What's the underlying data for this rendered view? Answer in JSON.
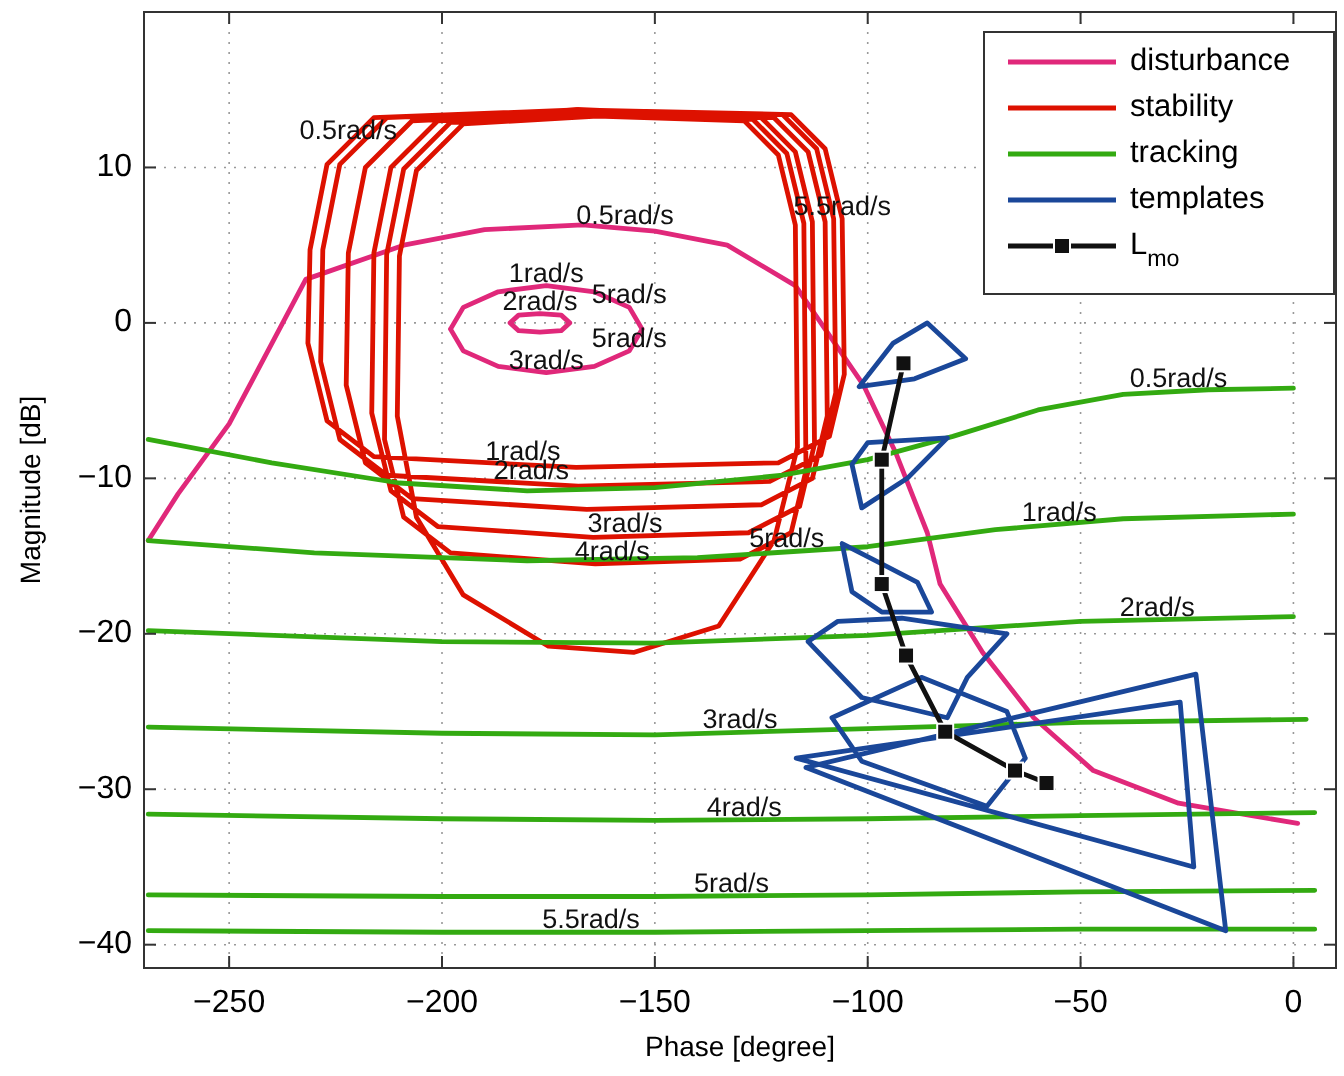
{
  "chart_data": {
    "type": "line",
    "xlabel": "Phase [degree]",
    "ylabel": "Magnitude [dB]",
    "xlim": [
      -270,
      10
    ],
    "ylim": [
      -41.5,
      20
    ],
    "xticks": [
      -250,
      -200,
      -150,
      -100,
      -50,
      0
    ],
    "yticks": [
      -40,
      -30,
      -20,
      -10,
      0,
      10
    ],
    "grid": true,
    "legend": "top right",
    "series": [
      {
        "name": "disturbance",
        "color": "#e0287a",
        "x": [
          -269,
          -262,
          -250,
          -232,
          -209,
          -190,
          -167,
          -150,
          -133,
          -117,
          -101,
          -93.5,
          -86,
          -83,
          -73,
          -61,
          -47,
          -27,
          1,
          null,
          -198,
          -195,
          -186.8,
          -175.5,
          -164.2,
          -156,
          -153,
          null,
          -198,
          -195,
          -186.8,
          -175.5,
          -164.2,
          -156,
          -153,
          null,
          -184,
          -182,
          -177,
          -172,
          -170,
          null,
          -184,
          -182,
          -177,
          -172,
          -170
        ],
        "values": [
          -14,
          -11,
          -6.5,
          2.8,
          5,
          6,
          6.3,
          5.9,
          5,
          2.4,
          -4,
          -8.3,
          -13.5,
          -16.8,
          -21.2,
          -25.4,
          -28.8,
          -30.9,
          -32.2,
          null,
          -0.4,
          1,
          2,
          2.4,
          2,
          1,
          -0.4,
          null,
          -0.4,
          -1.8,
          -2.8,
          -3.2,
          -2.8,
          -1.8,
          -0.4,
          null,
          0,
          0.5,
          0.6,
          0.5,
          0,
          null,
          0,
          -0.5,
          -0.6,
          -0.5,
          0
        ]
      },
      {
        "name": "stability",
        "color": "#dd1100",
        "x": [
          -231.5,
          -231,
          -227,
          -216,
          -168.5,
          -118,
          -110,
          -106,
          -105.5,
          null,
          -231.5,
          -227,
          -216,
          -168.5,
          -121,
          -109,
          -105.5,
          null,
          -228.5,
          -228,
          -224,
          -213,
          -168,
          -120,
          -112,
          -108,
          -107.5,
          null,
          -228.5,
          -224,
          -213,
          -168,
          -123,
          -111,
          -107.5,
          null,
          -222.5,
          -222,
          -218,
          -207,
          -166,
          -122,
          -114,
          -110,
          -109.5,
          null,
          -222.5,
          -218,
          -207,
          -166,
          -125,
          -113,
          -109.5,
          null,
          -216.5,
          -216,
          -212,
          -201,
          -164.5,
          -125,
          -117,
          -113,
          -112.5,
          null,
          -216.5,
          -212,
          -201,
          -164.5,
          -128,
          -116,
          -112.5,
          null,
          -213.5,
          -213,
          -209,
          -198,
          -164,
          -127,
          -119,
          -115,
          -114.5,
          null,
          -213.5,
          -209,
          -198,
          -164,
          -130,
          -118,
          -114.5,
          null,
          -210.5,
          -210,
          -206,
          -195,
          -163.5,
          -129,
          -121,
          -117,
          -116.5,
          null,
          -210.5,
          -206,
          -195,
          -175,
          -155,
          -135,
          -122,
          -116.5
        ],
        "values": [
          -1.3,
          4.7,
          10.2,
          13.2,
          13.7,
          13.4,
          11.2,
          6.7,
          -3.3,
          null,
          -1.3,
          -6.3,
          -8.6,
          -9.3,
          -9,
          -7.3,
          -3.3,
          null,
          -2.5,
          4.7,
          10.2,
          13.2,
          13.7,
          13.4,
          11.2,
          6.7,
          -4.5,
          null,
          -2.5,
          -7.5,
          -9.8,
          -10.5,
          -10.2,
          -8.5,
          -4.5,
          null,
          -4,
          4.5,
          10,
          13,
          13.5,
          13.2,
          11,
          6.5,
          -6,
          null,
          -4,
          -9,
          -11.3,
          -12,
          -11.7,
          -10,
          -6,
          null,
          -5.8,
          4.5,
          10,
          13,
          13.5,
          13.2,
          11,
          6.5,
          -7.8,
          null,
          -5.8,
          -10.8,
          -13.1,
          -13.8,
          -13.5,
          -11.8,
          -7.8,
          null,
          -7.5,
          4.4,
          9.9,
          12.9,
          13.4,
          13.1,
          10.9,
          6.4,
          -9.5,
          null,
          -7.5,
          -12.5,
          -14.8,
          -15.5,
          -15.2,
          -13.5,
          -9.5,
          null,
          -6,
          4.3,
          9.8,
          12.8,
          13.3,
          13,
          10.8,
          6.3,
          -8,
          null,
          -6,
          -12.5,
          -17.5,
          -20.8,
          -21.2,
          -19.5,
          -14,
          -8
        ]
      },
      {
        "name": "tracking",
        "color": "#33aa11",
        "x": [
          -269,
          -240,
          -210,
          -180,
          -150,
          -120,
          -100,
          -80,
          -60,
          -40,
          -20,
          0,
          null,
          -269,
          -230,
          -180,
          -140,
          -100,
          -70,
          -40,
          0,
          null,
          -269,
          -200,
          -150,
          -100,
          -50,
          0,
          null,
          -269,
          -200,
          -150,
          -100,
          -50,
          3,
          null,
          -269,
          -200,
          -150,
          -100,
          -50,
          5,
          null,
          -269,
          -200,
          -150,
          -100,
          -50,
          5,
          null,
          -269,
          -200,
          -150,
          -100,
          -50,
          5
        ],
        "values": [
          -7.5,
          -9,
          -10.3,
          -10.8,
          -10.6,
          -9.8,
          -8.8,
          -7.3,
          -5.6,
          -4.6,
          -4.3,
          -4.2,
          null,
          -14,
          -14.8,
          -15.3,
          -15.1,
          -14.4,
          -13.3,
          -12.6,
          -12.3,
          null,
          -19.8,
          -20.5,
          -20.6,
          -20.1,
          -19.2,
          -18.9,
          null,
          -26,
          -26.4,
          -26.5,
          -26.1,
          -25.7,
          -25.5,
          null,
          -31.6,
          -31.9,
          -32,
          -31.9,
          -31.7,
          -31.5,
          null,
          -36.8,
          -36.9,
          -36.9,
          -36.8,
          -36.6,
          -36.5,
          null,
          -39.1,
          -39.2,
          -39.2,
          -39.1,
          -39,
          -39
        ]
      },
      {
        "name": "templates",
        "color": "#1a4799",
        "x": [
          -102,
          -94,
          -86,
          -77,
          null,
          -102,
          -89,
          -77,
          null,
          -103.7,
          -100,
          -81.3,
          null,
          -103.7,
          -101.4,
          -90.7,
          -81.3,
          null,
          -106,
          -96.7,
          -88.3,
          -85,
          null,
          -106,
          -103.7,
          -96.7,
          -85,
          null,
          -114,
          -107,
          -92,
          -67.3,
          null,
          -114,
          -101.4,
          -81.3,
          -76.6,
          -67.3,
          null,
          -108.4,
          -87.4,
          -67.3,
          -63,
          null,
          -108.4,
          -101.4,
          -72,
          -63,
          null,
          -116.8,
          -26.6,
          -23.4,
          null,
          -116.8,
          -23.4,
          null,
          -114.5,
          -22.9,
          -15.9,
          null,
          -114.5,
          -15.9
        ],
        "values": [
          -4.1,
          -1.3,
          0,
          -2.3,
          null,
          -4.1,
          -3.6,
          -2.3,
          null,
          -9.1,
          -7.7,
          -7.4,
          null,
          -9.1,
          -11.9,
          -10,
          -7.4,
          null,
          -14.2,
          -15.5,
          -16.7,
          -18.6,
          null,
          -14.2,
          -17.3,
          -18.6,
          -18.6,
          null,
          -20.5,
          -19.2,
          -19,
          -20,
          null,
          -20.5,
          -24.1,
          -25.4,
          -22.8,
          -20,
          null,
          -25.4,
          -22.8,
          -25,
          -28,
          null,
          -25.4,
          -28.2,
          -31.1,
          -28,
          null,
          -28,
          -24.4,
          -35,
          null,
          -28,
          -35,
          null,
          -28.6,
          -22.6,
          -39.1,
          null,
          -28.6,
          -39.1
        ]
      },
      {
        "name": "L$_{mo}$",
        "color": "#111111",
        "marker": "square",
        "x": [
          -91.6,
          -96.7,
          -96.7,
          -91,
          -81.8,
          -65.4,
          -58
        ],
        "values": [
          -2.6,
          -8.8,
          -16.8,
          -21.4,
          -26.3,
          -28.8,
          -29.6
        ]
      }
    ],
    "annotations": [
      {
        "text": "0.5rad/s",
        "x": -222,
        "y": 11.6
      },
      {
        "text": "1rad/s",
        "x": -181,
        "y": -9.1
      },
      {
        "text": "2rad/s",
        "x": -179,
        "y": -10.3
      },
      {
        "text": "3rad/s",
        "x": -157,
        "y": -13.7
      },
      {
        "text": "4rad/s",
        "x": -160,
        "y": -15.5
      },
      {
        "text": "5rad/s",
        "x": -119,
        "y": -14.7
      },
      {
        "text": "5.5rad/s",
        "x": -106,
        "y": 6.7
      },
      {
        "text": "0.5rad/s",
        "x": -157,
        "y": 6.1
      },
      {
        "text": "1rad/s",
        "x": -175.5,
        "y": 2.4
      },
      {
        "text": "2rad/s",
        "x": -177,
        "y": 0.6
      },
      {
        "text": "5rad/s",
        "x": -156,
        "y": 1
      },
      {
        "text": "3rad/s",
        "x": -175.5,
        "y": -3.2
      },
      {
        "text": "5rad/s",
        "x": -156,
        "y": -1.8
      },
      {
        "text": "0.5rad/s",
        "x": -27,
        "y": -4.4
      },
      {
        "text": "1rad/s",
        "x": -55,
        "y": -13
      },
      {
        "text": "2rad/s",
        "x": -32,
        "y": -19.1
      },
      {
        "text": "3rad/s",
        "x": -130,
        "y": -26.3
      },
      {
        "text": "4rad/s",
        "x": -129,
        "y": -32
      },
      {
        "text": "5rad/s",
        "x": -132,
        "y": -36.9
      },
      {
        "text": "5.5rad/s",
        "x": -165,
        "y": -39.2
      }
    ]
  }
}
